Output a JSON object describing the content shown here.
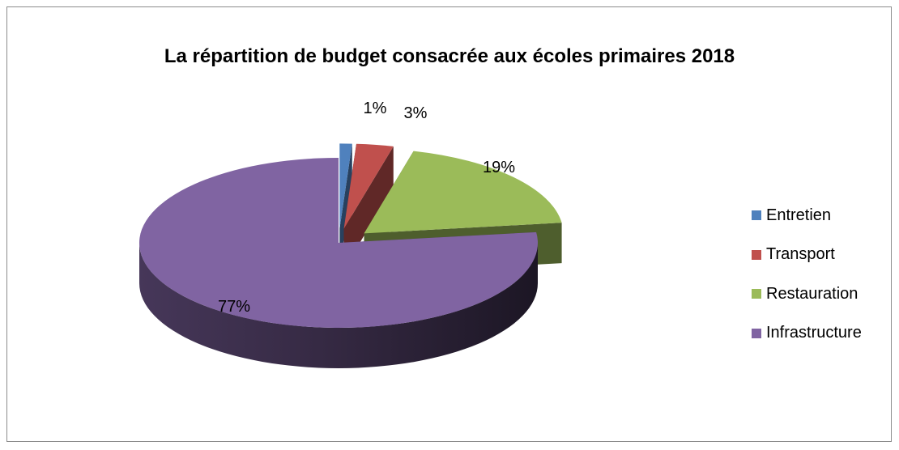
{
  "chart_data": {
    "type": "pie",
    "title": "La répartition de budget consacrée aux écoles primaires 2018",
    "categories": [
      "Entretien",
      "Transport",
      "Restauration",
      "Infrastructure"
    ],
    "values": [
      1,
      3,
      19,
      77
    ],
    "data_labels": [
      "1%",
      "3%",
      "19%",
      "77%"
    ],
    "colors": [
      "#4f81bd",
      "#c0504d",
      "#9bbb59",
      "#8064a2"
    ],
    "style": "3d-exploded",
    "legend": "right"
  }
}
